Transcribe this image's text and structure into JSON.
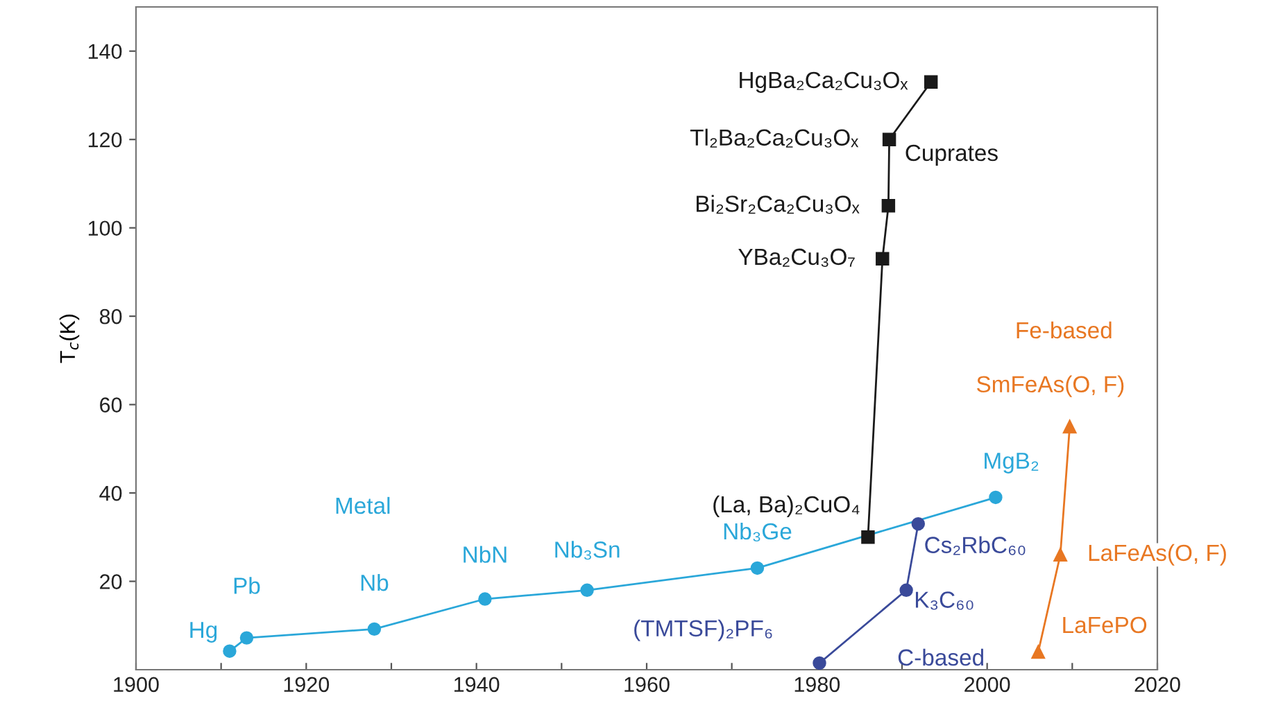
{
  "chart_data": {
    "type": "line",
    "ylabel": "T$_{c}$(K)",
    "xlim": [
      1900,
      2020
    ],
    "xticks": [
      1900,
      {
        "value": 1910,
        "label": null
      },
      1920,
      {
        "value": 1930,
        "label": null
      },
      1940,
      {
        "value": 1950,
        "label": null
      },
      1960,
      {
        "value": 1970,
        "label": null
      },
      1980,
      {
        "value": 1990,
        "label": null
      },
      2000,
      {
        "value": 2010,
        "label": null
      },
      2020
    ],
    "ylim": [
      0,
      150
    ],
    "yticks": [
      20,
      40,
      60,
      80,
      100,
      120,
      140
    ],
    "grid": false,
    "series": [
      {
        "name": "Metal",
        "color": "#2aa7d9",
        "marker": "circle",
        "x": [
          1911,
          1913,
          1928,
          1941,
          1953,
          1973,
          2001
        ],
        "values": [
          4.2,
          7.2,
          9.2,
          16,
          18,
          23,
          39
        ]
      },
      {
        "name": "Cuprates",
        "color": "#1a1a1a",
        "marker": "square",
        "x": [
          1986,
          1987.7,
          1988.4,
          1988.5,
          1993.4
        ],
        "values": [
          30,
          93,
          105,
          120,
          133
        ]
      },
      {
        "name": "C-based",
        "color": "#3a4a9a",
        "marker": "circle",
        "x": [
          1980.3,
          1990.5,
          1991.9
        ],
        "values": [
          1.5,
          18,
          33
        ]
      },
      {
        "name": "Fe-based",
        "color": "#e87722",
        "marker": "triangle",
        "x": [
          2006,
          2008.6,
          2009.7
        ],
        "values": [
          4,
          26,
          55
        ]
      }
    ],
    "annotations": [
      {
        "text": "Hg",
        "x": 1911,
        "y": 4.2
      },
      {
        "text": "Pb",
        "x": 1913,
        "y": 7.2
      },
      {
        "text": "Nb",
        "x": 1928,
        "y": 9.2
      },
      {
        "text": "NbN",
        "x": 1941,
        "y": 16
      },
      {
        "text": "Nb₃Sn",
        "x": 1953,
        "y": 18
      },
      {
        "text": "Nb₃Ge",
        "x": 1973,
        "y": 23
      },
      {
        "text": "MgB₂",
        "x": 2001,
        "y": 39
      },
      {
        "text": "(La, Ba)₂CuO₄",
        "x": 1986,
        "y": 30
      },
      {
        "text": "YBa₂Cu₃O₇",
        "x": 1987.7,
        "y": 93
      },
      {
        "text": "Bi₂Sr₂Ca₂Cu₃Oₓ",
        "x": 1988.4,
        "y": 105
      },
      {
        "text": "Tl₂Ba₂Ca₂Cu₃Oₓ",
        "x": 1988.5,
        "y": 120
      },
      {
        "text": "HgBa₂Ca₂Cu₃Oₓ",
        "x": 1993.4,
        "y": 133
      },
      {
        "text": "(TMTSF)₂PF₆",
        "x": 1980.3,
        "y": 1.5
      },
      {
        "text": "K₃C₆₀",
        "x": 1990.5,
        "y": 18
      },
      {
        "text": "Cs₂RbC₆₀",
        "x": 1991.9,
        "y": 33
      },
      {
        "text": "LaFePO",
        "x": 2006,
        "y": 4
      },
      {
        "text": "LaFeAs(O, F)",
        "x": 2008.6,
        "y": 26
      },
      {
        "text": "SmFeAs(O, F)",
        "x": 2009.7,
        "y": 55
      }
    ]
  }
}
